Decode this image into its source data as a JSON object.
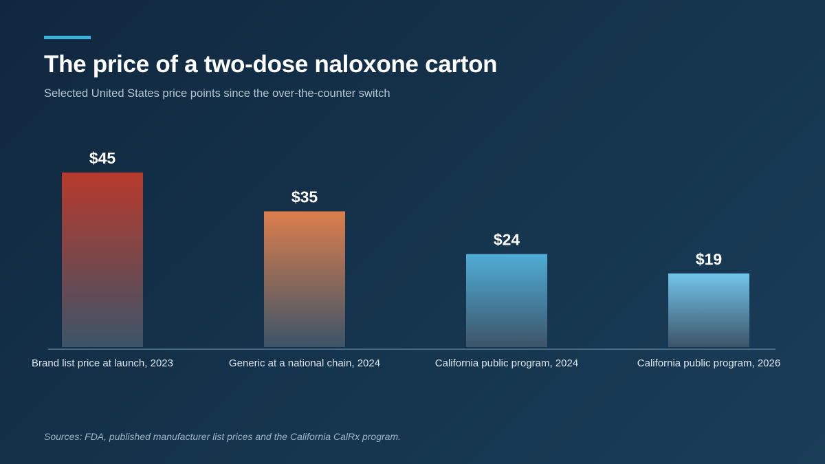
{
  "header": {
    "title": "The price of a two-dose naloxone carton",
    "subtitle": "Selected United States price points since the over-the-counter switch"
  },
  "footer": {
    "source": "Sources: FDA, published manufacturer list prices and the California CalRx program."
  },
  "chart_data": {
    "type": "bar",
    "title": "The price of a two-dose naloxone carton",
    "subtitle": "Selected United States price points since the over-the-counter switch",
    "categories": [
      "Brand list price at launch, 2023",
      "Generic at a national chain, 2024",
      "California public program, 2024",
      "California public program, 2026"
    ],
    "values": [
      45,
      35,
      24,
      19
    ],
    "data_labels": [
      "$45",
      "$35",
      "$24",
      "$19"
    ],
    "ylim": [
      0,
      45
    ],
    "grid": false,
    "bar_colors": [
      "#b83a2c",
      "#dc7e4c",
      "#4fadd6",
      "#72c4ea"
    ],
    "bar_fade_color": "#3c5468",
    "axis_color": "#5d7d96",
    "label_color": "#ffffff",
    "category_color": "#dce6ee"
  }
}
